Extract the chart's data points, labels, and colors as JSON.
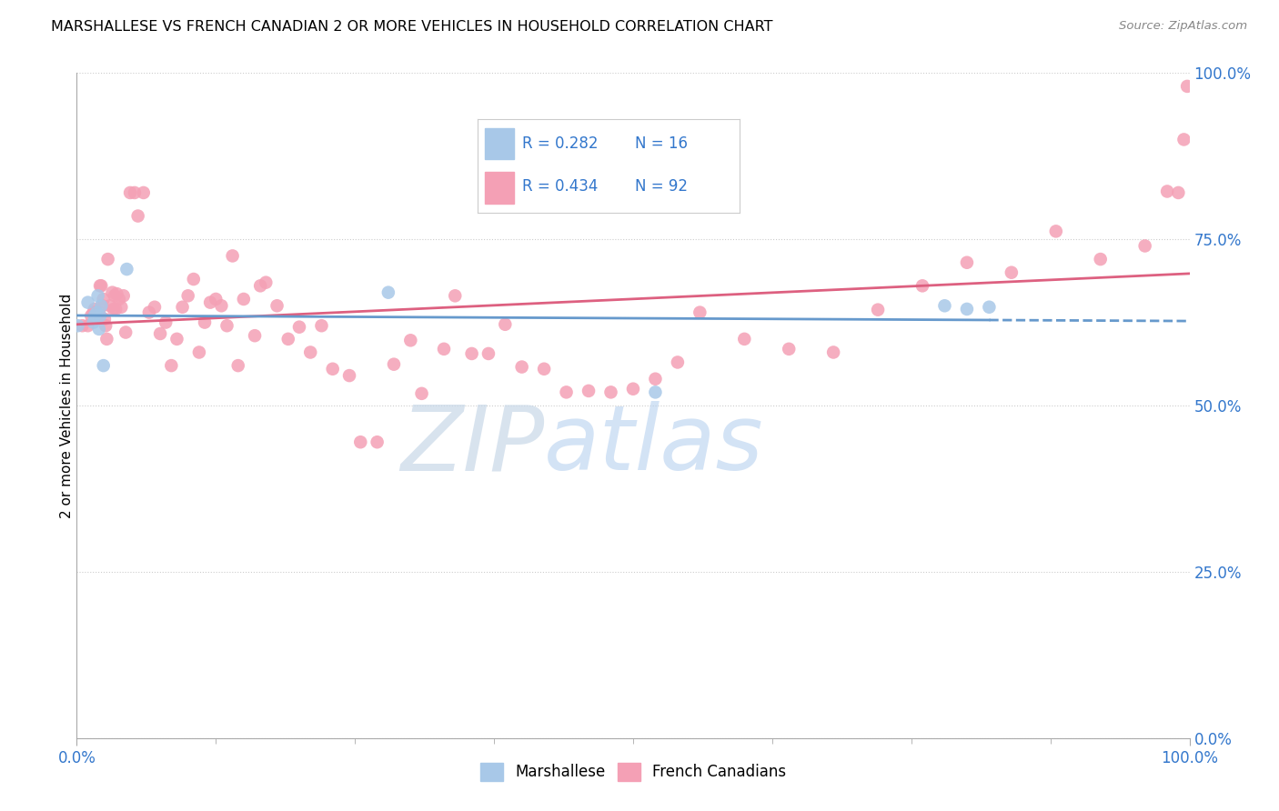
{
  "title": "MARSHALLESE VS FRENCH CANADIAN 2 OR MORE VEHICLES IN HOUSEHOLD CORRELATION CHART",
  "source": "Source: ZipAtlas.com",
  "ylabel": "2 or more Vehicles in Household",
  "xlim": [
    0,
    1
  ],
  "ylim": [
    0,
    1
  ],
  "ytick_labels": [
    "0.0%",
    "25.0%",
    "50.0%",
    "75.0%",
    "100.0%"
  ],
  "ytick_values": [
    0,
    0.25,
    0.5,
    0.75,
    1.0
  ],
  "r_marshallese": "0.282",
  "n_marshallese": "16",
  "r_french": "0.434",
  "n_french": "92",
  "marshallese_color": "#a8c8e8",
  "french_color": "#f4a0b5",
  "line_marshallese_color": "#6699cc",
  "line_french_color": "#dd6080",
  "legend_color": "#3377cc",
  "marshallese_x": [
    0.001,
    0.01,
    0.015,
    0.016,
    0.018,
    0.019,
    0.02,
    0.021,
    0.022,
    0.024,
    0.045,
    0.28,
    0.52,
    0.78,
    0.8,
    0.82
  ],
  "marshallese_y": [
    0.62,
    0.655,
    0.625,
    0.635,
    0.64,
    0.665,
    0.615,
    0.635,
    0.65,
    0.56,
    0.705,
    0.67,
    0.52,
    0.65,
    0.645,
    0.648
  ],
  "french_x": [
    0.005,
    0.01,
    0.013,
    0.015,
    0.016,
    0.017,
    0.018,
    0.019,
    0.02,
    0.021,
    0.022,
    0.023,
    0.024,
    0.025,
    0.026,
    0.027,
    0.028,
    0.03,
    0.032,
    0.033,
    0.034,
    0.035,
    0.036,
    0.038,
    0.04,
    0.042,
    0.044,
    0.048,
    0.052,
    0.055,
    0.06,
    0.065,
    0.07,
    0.075,
    0.08,
    0.085,
    0.09,
    0.095,
    0.1,
    0.105,
    0.11,
    0.115,
    0.12,
    0.125,
    0.13,
    0.135,
    0.14,
    0.145,
    0.15,
    0.16,
    0.165,
    0.17,
    0.18,
    0.19,
    0.2,
    0.21,
    0.22,
    0.23,
    0.245,
    0.255,
    0.27,
    0.285,
    0.3,
    0.31,
    0.33,
    0.34,
    0.355,
    0.37,
    0.385,
    0.4,
    0.42,
    0.44,
    0.46,
    0.48,
    0.5,
    0.52,
    0.54,
    0.56,
    0.6,
    0.64,
    0.68,
    0.72,
    0.76,
    0.8,
    0.84,
    0.88,
    0.92,
    0.96,
    0.98,
    0.99,
    0.995,
    0.998
  ],
  "french_y": [
    0.62,
    0.62,
    0.635,
    0.64,
    0.645,
    0.64,
    0.63,
    0.638,
    0.64,
    0.68,
    0.68,
    0.65,
    0.66,
    0.63,
    0.62,
    0.6,
    0.72,
    0.65,
    0.67,
    0.645,
    0.665,
    0.645,
    0.668,
    0.66,
    0.648,
    0.665,
    0.61,
    0.82,
    0.82,
    0.785,
    0.82,
    0.64,
    0.648,
    0.608,
    0.625,
    0.56,
    0.6,
    0.648,
    0.665,
    0.69,
    0.58,
    0.625,
    0.655,
    0.66,
    0.65,
    0.62,
    0.725,
    0.56,
    0.66,
    0.605,
    0.68,
    0.685,
    0.65,
    0.6,
    0.618,
    0.58,
    0.62,
    0.555,
    0.545,
    0.445,
    0.445,
    0.562,
    0.598,
    0.518,
    0.585,
    0.665,
    0.578,
    0.578,
    0.622,
    0.558,
    0.555,
    0.52,
    0.522,
    0.52,
    0.525,
    0.54,
    0.565,
    0.64,
    0.6,
    0.585,
    0.58,
    0.644,
    0.68,
    0.715,
    0.7,
    0.762,
    0.72,
    0.74,
    0.822,
    0.82,
    0.9,
    0.98
  ]
}
